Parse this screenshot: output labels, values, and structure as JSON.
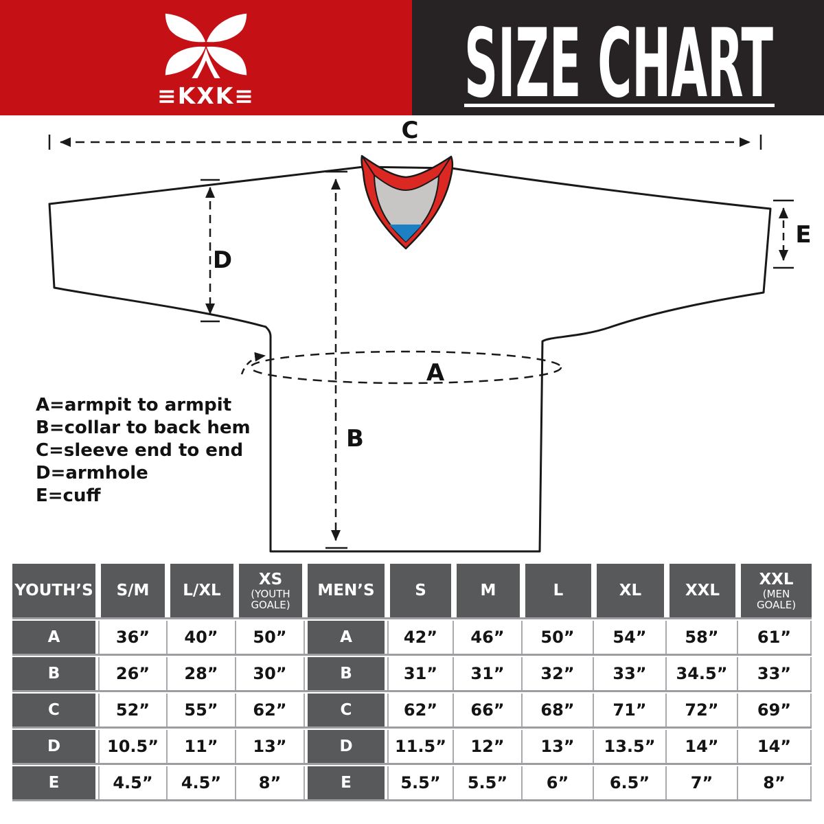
{
  "header": {
    "brand": "KXK",
    "logo_text": "≡KXK≡",
    "title": "SIZE CHART",
    "red": "#C51015",
    "black": "#272324"
  },
  "diagram": {
    "letters": {
      "a": "A",
      "b": "B",
      "c": "C",
      "d": "D",
      "e": "E"
    },
    "legend": [
      "A=armpit to armpit",
      "B=collar to back hem",
      "C=sleeve end to end",
      "D=armhole",
      "E=cuff"
    ],
    "collar_colors": {
      "outer": "#DC2823",
      "inner": "#C7C6C5",
      "insert": "#1E80C4"
    }
  },
  "size_table": {
    "grid_gray": "#A7A9AC",
    "cell_gray": "#58595B",
    "youth": {
      "group_label": "YOUTH’S",
      "sizes": [
        {
          "label": "S/M"
        },
        {
          "label": "L/XL"
        },
        {
          "label": "XS",
          "sub": "(YOUTH GOALE)"
        }
      ]
    },
    "men": {
      "group_label": "MEN’S",
      "sizes": [
        {
          "label": "S"
        },
        {
          "label": "M"
        },
        {
          "label": "L"
        },
        {
          "label": "XL"
        },
        {
          "label": "XXL"
        },
        {
          "label": "XXL",
          "sub": "(MEN GOALE)"
        }
      ]
    },
    "rows": [
      {
        "label": "A",
        "youth": [
          "36”",
          "40”",
          "50”"
        ],
        "men": [
          "42”",
          "46”",
          "50”",
          "54”",
          "58”",
          "61”"
        ]
      },
      {
        "label": "B",
        "youth": [
          "26”",
          "28”",
          "30”"
        ],
        "men": [
          "31”",
          "31”",
          "32”",
          "33”",
          "34.5”",
          "33”"
        ]
      },
      {
        "label": "C",
        "youth": [
          "52”",
          "55”",
          "62”"
        ],
        "men": [
          "62”",
          "66”",
          "68”",
          "71”",
          "72”",
          "69”"
        ]
      },
      {
        "label": "D",
        "youth": [
          "10.5”",
          "11”",
          "13”"
        ],
        "men": [
          "11.5”",
          "12”",
          "13”",
          "13.5”",
          "14”",
          "14”"
        ]
      },
      {
        "label": "E",
        "youth": [
          "4.5”",
          "4.5”",
          "8”"
        ],
        "men": [
          "5.5”",
          "5.5”",
          "6”",
          "6.5”",
          "7”",
          "8”"
        ]
      }
    ]
  }
}
